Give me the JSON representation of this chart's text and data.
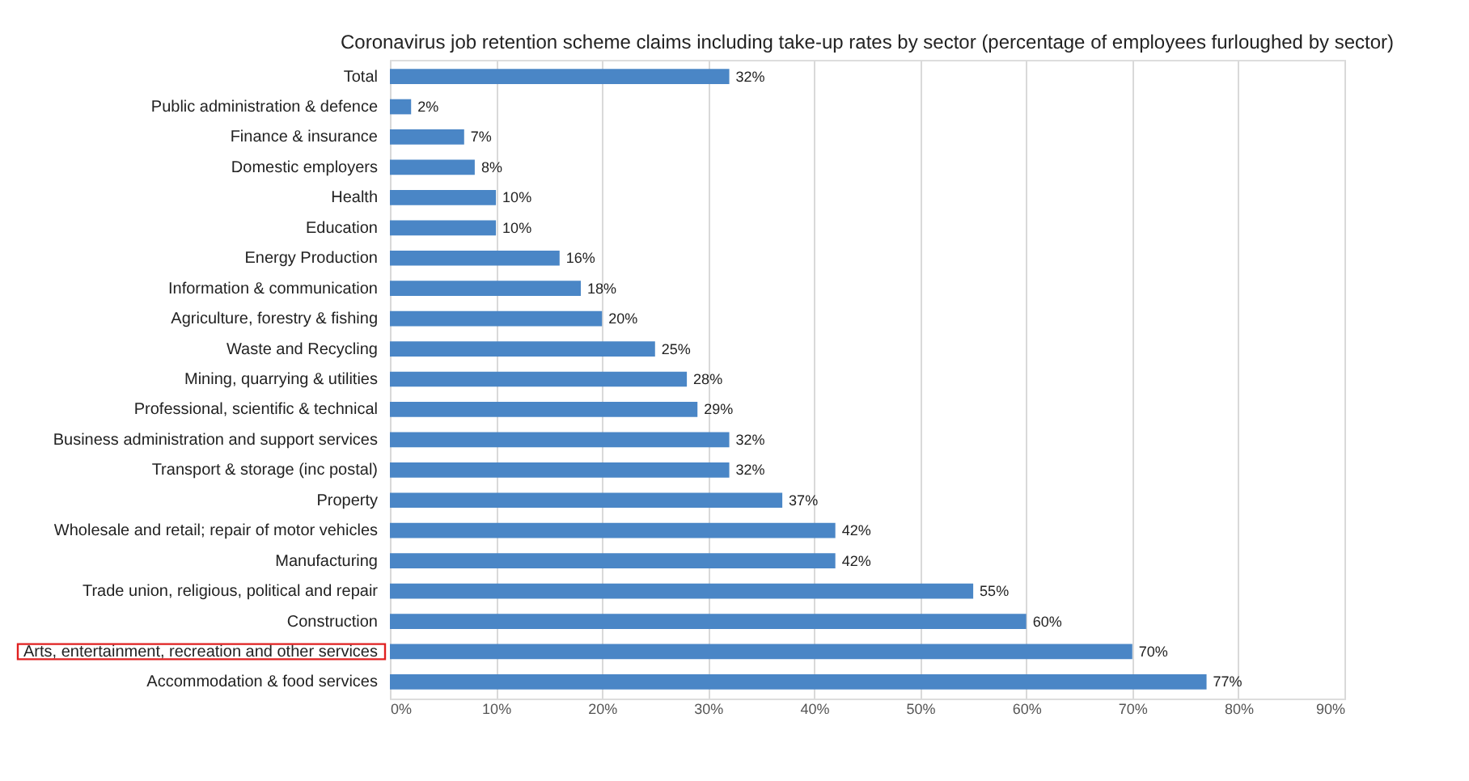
{
  "chart_data": {
    "type": "bar",
    "orientation": "horizontal",
    "title": "Coronavirus job retention scheme claims including take-up rates by sector (percentage of employees furloughed by sector)",
    "categories": [
      "Total",
      "Public administration & defence",
      "Finance & insurance",
      "Domestic employers",
      "Health",
      "Education",
      "Energy Production",
      "Information & communication",
      "Agriculture, forestry & fishing",
      "Waste and Recycling",
      "Mining, quarrying & utilities",
      "Professional, scientific & technical",
      "Business administration and support services",
      "Transport & storage (inc postal)",
      "Property",
      "Wholesale and retail; repair of motor vehicles",
      "Manufacturing",
      "Trade union, religious, political and repair",
      "Construction",
      "Arts, entertainment, recreation and other services",
      "Accommodation & food services"
    ],
    "values": [
      32,
      2,
      7,
      8,
      10,
      10,
      16,
      18,
      20,
      25,
      28,
      29,
      32,
      32,
      37,
      42,
      42,
      55,
      60,
      70,
      77
    ],
    "value_labels": [
      "32%",
      "2%",
      "7%",
      "8%",
      "10%",
      "10%",
      "16%",
      "18%",
      "20%",
      "25%",
      "28%",
      "29%",
      "32%",
      "32%",
      "37%",
      "42%",
      "42%",
      "55%",
      "60%",
      "70%",
      "77%"
    ],
    "color": "#4a86c6",
    "xlim": [
      0,
      90
    ],
    "xticks": [
      {
        "value": 0,
        "label": "0%"
      },
      {
        "value": 10,
        "label": "10%"
      },
      {
        "value": 20,
        "label": "20%"
      },
      {
        "value": 30,
        "label": "30%"
      },
      {
        "value": 40,
        "label": "40%"
      },
      {
        "value": 50,
        "label": "50%"
      },
      {
        "value": 60,
        "label": "60%"
      },
      {
        "value": 70,
        "label": "70%"
      },
      {
        "value": 80,
        "label": "80%"
      },
      {
        "value": 90,
        "label": "90%"
      }
    ],
    "grid": "x"
  }
}
